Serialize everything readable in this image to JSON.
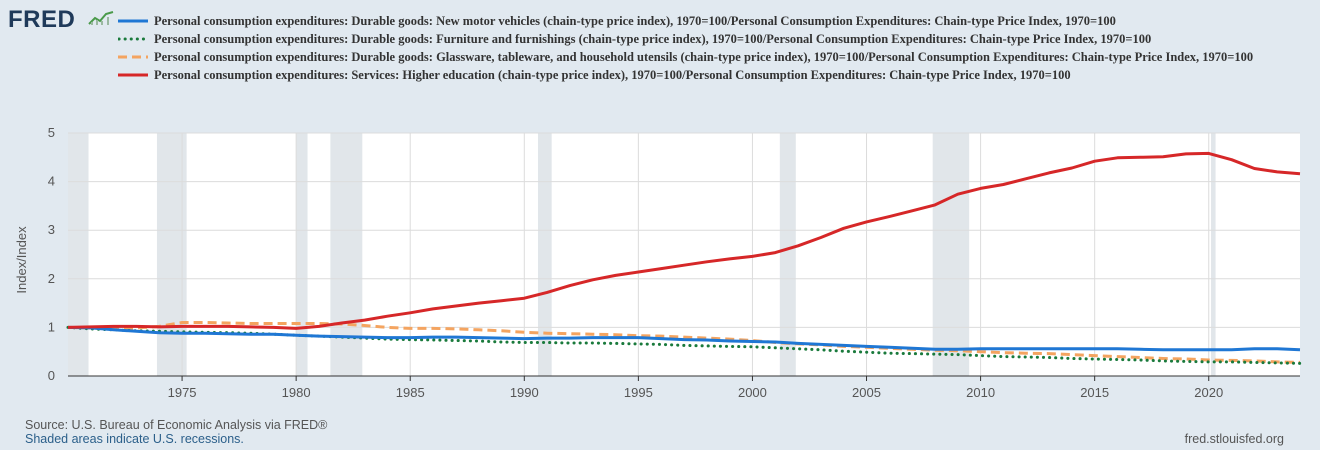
{
  "logo": {
    "text": "FRED",
    "icon": "fred-graph-icon"
  },
  "footer": {
    "source": "Source: U.S. Bureau of Economic Analysis via FRED®",
    "recession_note": "Shaded areas indicate U.S. recessions.",
    "site": "fred.stlouisfed.org"
  },
  "chart_data": {
    "type": "line",
    "title": "",
    "xlabel": "",
    "ylabel": "Index/Index",
    "xlim": [
      1970,
      2024
    ],
    "ylim": [
      0,
      5
    ],
    "y_ticks": [
      "0",
      "1",
      "2",
      "3",
      "4",
      "5"
    ],
    "x_ticks": [
      "1975",
      "1980",
      "1985",
      "1990",
      "1995",
      "2000",
      "2005",
      "2010",
      "2015",
      "2020"
    ],
    "grid": true,
    "recessions": [
      [
        1970.0,
        1970.9
      ],
      [
        1973.9,
        1975.2
      ],
      [
        1980.0,
        1980.5
      ],
      [
        1981.5,
        1982.9
      ],
      [
        1990.6,
        1991.2
      ],
      [
        2001.2,
        2001.9
      ],
      [
        2007.9,
        2009.5
      ],
      [
        2020.1,
        2020.3
      ]
    ],
    "series": [
      {
        "name": "Personal consumption expenditures: Durable goods: New motor vehicles (chain-type price index), 1970=100/Personal Consumption Expenditures: Chain-type Price Index, 1970=100",
        "color": "#1f77d4",
        "style": "solid",
        "x": [
          1970,
          1971,
          1972,
          1973,
          1974,
          1975,
          1976,
          1977,
          1978,
          1979,
          1980,
          1981,
          1982,
          1983,
          1984,
          1985,
          1986,
          1987,
          1988,
          1989,
          1990,
          1991,
          1992,
          1993,
          1994,
          1995,
          1996,
          1997,
          1998,
          1999,
          2000,
          2001,
          2002,
          2003,
          2004,
          2005,
          2006,
          2007,
          2008,
          2009,
          2010,
          2011,
          2012,
          2013,
          2014,
          2015,
          2016,
          2017,
          2018,
          2019,
          2020,
          2021,
          2022,
          2023,
          2024
        ],
        "values": [
          1.0,
          0.99,
          0.95,
          0.92,
          0.89,
          0.88,
          0.88,
          0.87,
          0.86,
          0.86,
          0.84,
          0.82,
          0.81,
          0.8,
          0.79,
          0.79,
          0.8,
          0.8,
          0.79,
          0.78,
          0.77,
          0.78,
          0.78,
          0.79,
          0.79,
          0.79,
          0.77,
          0.75,
          0.74,
          0.72,
          0.71,
          0.7,
          0.67,
          0.65,
          0.63,
          0.61,
          0.59,
          0.57,
          0.55,
          0.55,
          0.56,
          0.56,
          0.56,
          0.56,
          0.56,
          0.56,
          0.56,
          0.55,
          0.54,
          0.54,
          0.54,
          0.54,
          0.56,
          0.56,
          0.54
        ]
      },
      {
        "name": "Personal consumption expenditures: Durable goods: Furniture and furnishings (chain-type price index), 1970=100/Personal Consumption Expenditures: Chain-type Price Index, 1970=100",
        "color": "#1a7a3c",
        "style": "dotted",
        "x": [
          1970,
          1971,
          1972,
          1973,
          1974,
          1975,
          1976,
          1977,
          1978,
          1979,
          1980,
          1981,
          1982,
          1983,
          1984,
          1985,
          1986,
          1987,
          1988,
          1989,
          1990,
          1991,
          1992,
          1993,
          1994,
          1995,
          1996,
          1997,
          1998,
          1999,
          2000,
          2001,
          2002,
          2003,
          2004,
          2005,
          2006,
          2007,
          2008,
          2009,
          2010,
          2011,
          2012,
          2013,
          2014,
          2015,
          2016,
          2017,
          2018,
          2019,
          2020,
          2021,
          2022,
          2023,
          2024
        ],
        "values": [
          1.0,
          0.97,
          0.95,
          0.93,
          0.92,
          0.91,
          0.9,
          0.89,
          0.88,
          0.86,
          0.84,
          0.82,
          0.8,
          0.78,
          0.76,
          0.75,
          0.74,
          0.73,
          0.72,
          0.7,
          0.69,
          0.69,
          0.68,
          0.68,
          0.67,
          0.66,
          0.65,
          0.63,
          0.62,
          0.61,
          0.6,
          0.58,
          0.56,
          0.54,
          0.51,
          0.49,
          0.47,
          0.46,
          0.45,
          0.44,
          0.42,
          0.4,
          0.39,
          0.38,
          0.36,
          0.35,
          0.34,
          0.33,
          0.31,
          0.3,
          0.29,
          0.29,
          0.28,
          0.27,
          0.26
        ]
      },
      {
        "name": "Personal consumption expenditures: Durable goods: Glassware, tableware, and household utensils (chain-type price index), 1970=100/Personal Consumption Expenditures: Chain-type Price Index, 1970=100",
        "color": "#f4a460",
        "style": "dashed",
        "x": [
          1970,
          1971,
          1972,
          1973,
          1974,
          1975,
          1976,
          1977,
          1978,
          1979,
          1980,
          1981,
          1982,
          1983,
          1984,
          1985,
          1986,
          1987,
          1988,
          1989,
          1990,
          1991,
          1992,
          1993,
          1994,
          1995,
          1996,
          1997,
          1998,
          1999,
          2000,
          2001,
          2002,
          2003,
          2004,
          2005,
          2006,
          2007,
          2008,
          2009,
          2010,
          2011,
          2012,
          2013,
          2014,
          2015,
          2016,
          2017,
          2018,
          2019,
          2020,
          2021,
          2022,
          2023,
          2024
        ],
        "values": [
          1.0,
          0.99,
          0.98,
          0.99,
          1.02,
          1.1,
          1.1,
          1.09,
          1.08,
          1.08,
          1.08,
          1.08,
          1.07,
          1.04,
          1.0,
          0.98,
          0.98,
          0.97,
          0.95,
          0.93,
          0.9,
          0.88,
          0.87,
          0.86,
          0.85,
          0.83,
          0.82,
          0.8,
          0.78,
          0.76,
          0.73,
          0.69,
          0.66,
          0.64,
          0.61,
          0.59,
          0.57,
          0.55,
          0.53,
          0.52,
          0.5,
          0.48,
          0.47,
          0.46,
          0.44,
          0.42,
          0.4,
          0.38,
          0.36,
          0.35,
          0.33,
          0.32,
          0.31,
          0.29,
          0.28
        ]
      },
      {
        "name": "Personal consumption expenditures: Services: Higher education (chain-type price index), 1970=100/Personal Consumption Expenditures: Chain-type Price Index, 1970=100",
        "color": "#d62728",
        "style": "solid",
        "x": [
          1970,
          1971,
          1972,
          1973,
          1974,
          1975,
          1976,
          1977,
          1978,
          1979,
          1980,
          1981,
          1982,
          1983,
          1984,
          1985,
          1986,
          1987,
          1988,
          1989,
          1990,
          1991,
          1992,
          1993,
          1994,
          1995,
          1996,
          1997,
          1998,
          1999,
          2000,
          2001,
          2002,
          2003,
          2004,
          2005,
          2006,
          2007,
          2008,
          2009,
          2010,
          2011,
          2012,
          2013,
          2014,
          2015,
          2016,
          2017,
          2018,
          2019,
          2020,
          2021,
          2022,
          2023,
          2024
        ],
        "values": [
          1.0,
          1.01,
          1.02,
          1.02,
          1.01,
          1.02,
          1.02,
          1.02,
          1.01,
          1.0,
          0.98,
          1.02,
          1.09,
          1.15,
          1.23,
          1.3,
          1.38,
          1.44,
          1.5,
          1.55,
          1.6,
          1.72,
          1.86,
          1.98,
          2.07,
          2.14,
          2.21,
          2.28,
          2.35,
          2.41,
          2.46,
          2.54,
          2.68,
          2.85,
          3.04,
          3.17,
          3.28,
          3.4,
          3.52,
          3.74,
          3.86,
          3.94,
          4.06,
          4.18,
          4.28,
          4.42,
          4.49,
          4.5,
          4.51,
          4.57,
          4.58,
          4.45,
          4.27,
          4.2,
          4.16
        ]
      }
    ]
  }
}
